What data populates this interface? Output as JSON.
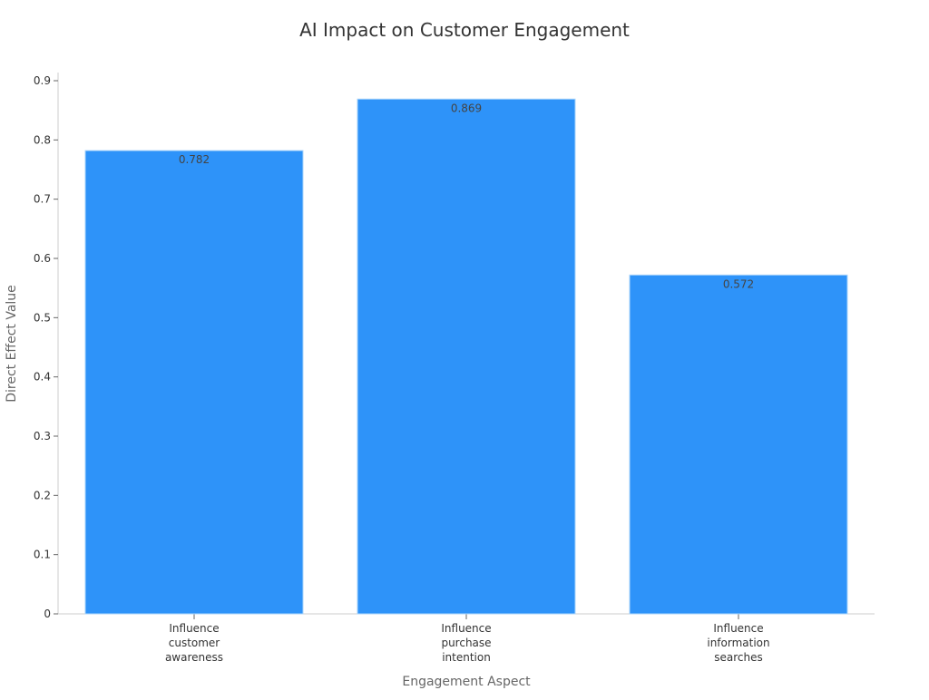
{
  "chart_data": {
    "type": "bar",
    "title": "AI Impact on Customer Engagement",
    "xlabel": "Engagement Aspect",
    "ylabel": "Direct Effect Value",
    "categories": [
      "Influence customer awareness",
      "Influence purchase intention",
      "Influence information searches"
    ],
    "category_lines": [
      [
        "Influence",
        "customer",
        "awareness"
      ],
      [
        "Influence",
        "purchase",
        "intention"
      ],
      [
        "Influence",
        "information",
        "searches"
      ]
    ],
    "values": [
      0.782,
      0.869,
      0.572
    ],
    "value_labels": [
      "0.782",
      "0.869",
      "0.572"
    ],
    "ylim": [
      0,
      0.9
    ],
    "yticks": [
      0,
      0.1,
      0.2,
      0.3,
      0.4,
      0.5,
      0.6,
      0.7,
      0.8,
      0.9
    ],
    "ytick_labels": [
      "0",
      "0.1",
      "0.2",
      "0.3",
      "0.4",
      "0.5",
      "0.6",
      "0.7",
      "0.8",
      "0.9"
    ],
    "grid": false,
    "legend": "none",
    "bar_color": "#2e93f9",
    "bar_edge_color": "#aad4fb",
    "axis_color": "#cccccc"
  }
}
